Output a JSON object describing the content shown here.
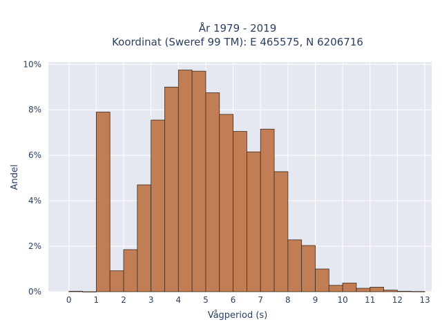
{
  "chart_data": {
    "type": "bar",
    "title_line1": "År 1979 - 2019",
    "title_line2": "Koordinat (Sweref 99 TM): E 465575, N 6206716",
    "xlabel": "Vågperiod (s)",
    "ylabel": "Andel",
    "xlim": [
      -0.75,
      13.25
    ],
    "ylim": [
      0,
      10.1
    ],
    "xticks": [
      0,
      1,
      2,
      3,
      4,
      5,
      6,
      7,
      8,
      9,
      10,
      11,
      12,
      13
    ],
    "yticks": [
      0,
      2,
      4,
      6,
      8,
      10
    ],
    "ytick_labels": [
      "0%",
      "2%",
      "4%",
      "6%",
      "8%",
      "10%"
    ],
    "bin_width": 0.5,
    "bins": [
      {
        "x0": 0.0,
        "value": 0.02
      },
      {
        "x0": 0.5,
        "value": 0.0
      },
      {
        "x0": 1.0,
        "value": 7.9
      },
      {
        "x0": 1.5,
        "value": 0.92
      },
      {
        "x0": 2.0,
        "value": 1.85
      },
      {
        "x0": 2.5,
        "value": 4.7
      },
      {
        "x0": 3.0,
        "value": 7.55
      },
      {
        "x0": 3.5,
        "value": 9.0
      },
      {
        "x0": 4.0,
        "value": 9.75
      },
      {
        "x0": 4.5,
        "value": 9.7
      },
      {
        "x0": 5.0,
        "value": 8.75
      },
      {
        "x0": 5.5,
        "value": 7.8
      },
      {
        "x0": 6.0,
        "value": 7.05
      },
      {
        "x0": 6.5,
        "value": 6.15
      },
      {
        "x0": 7.0,
        "value": 7.15
      },
      {
        "x0": 7.5,
        "value": 5.28
      },
      {
        "x0": 8.0,
        "value": 2.28
      },
      {
        "x0": 8.5,
        "value": 2.03
      },
      {
        "x0": 9.0,
        "value": 1.0
      },
      {
        "x0": 9.5,
        "value": 0.28
      },
      {
        "x0": 10.0,
        "value": 0.38
      },
      {
        "x0": 10.5,
        "value": 0.15
      },
      {
        "x0": 11.0,
        "value": 0.2
      },
      {
        "x0": 11.5,
        "value": 0.07
      },
      {
        "x0": 12.0,
        "value": 0.02
      },
      {
        "x0": 12.5,
        "value": 0.01
      }
    ],
    "bar_color": "#c17d54",
    "bar_edge_color": "#3d2b1f",
    "plot_bg": "#e5e8f0",
    "grid_color": "#ffffff",
    "grid": true
  }
}
